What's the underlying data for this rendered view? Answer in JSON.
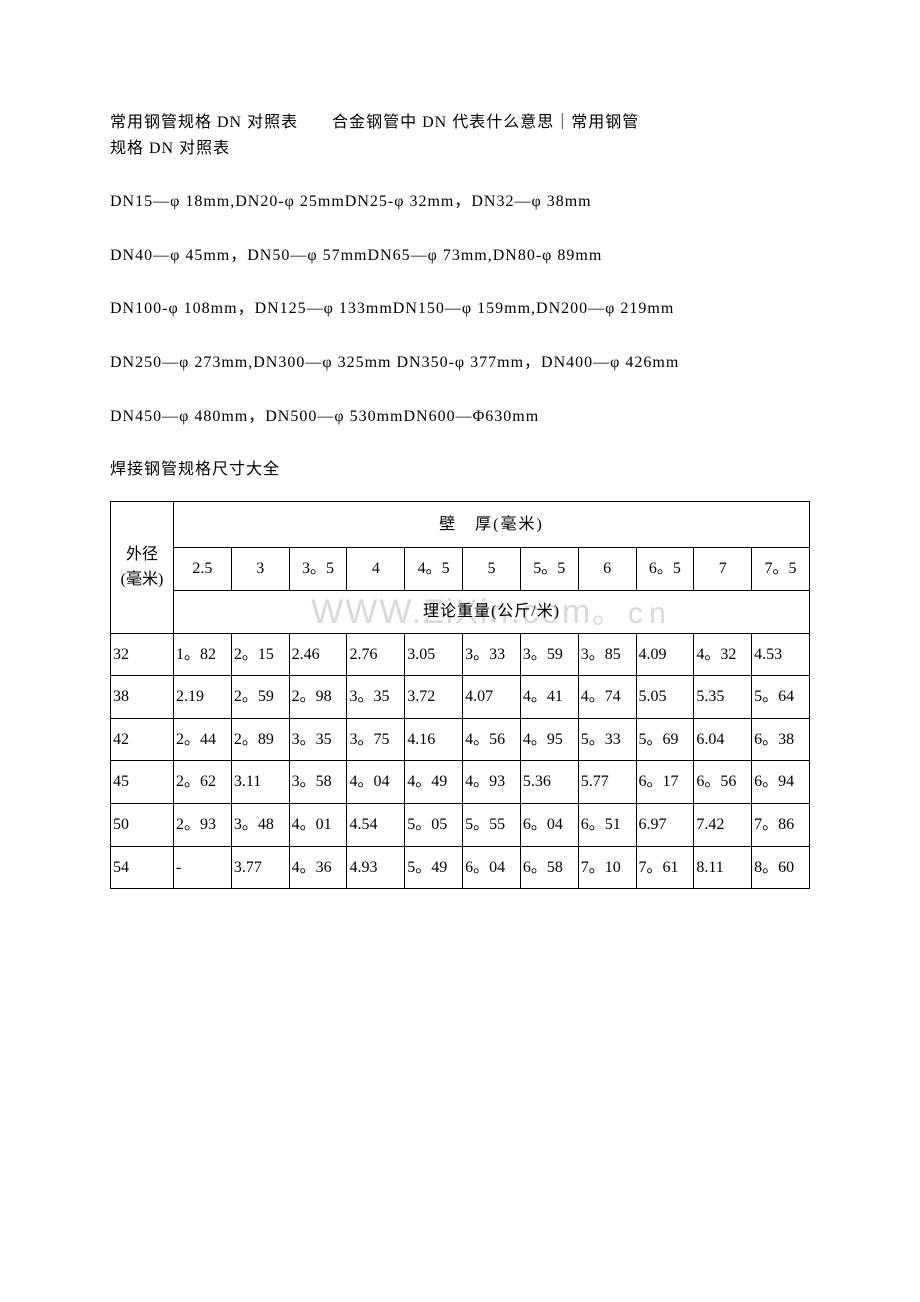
{
  "title_line1": "常用钢管规格 DN 对照表　　合金钢管中 DN 代表什么意思｜常用钢管",
  "title_line2": "规格 DN 对照表",
  "paragraphs": [
    "DN15—φ 18mm,DN20-φ 25mmDN25-φ 32mm，DN32—φ 38mm",
    "DN40—φ 45mm，DN50—φ 57mmDN65—φ 73mm,DN80-φ 89mm",
    "DN100-φ 108mm，DN125—φ 133mmDN150—φ 159mm,DN200—φ 219mm",
    "DN250—φ 273mm,DN300—φ 325mm DN350-φ 377mm，DN400—φ 426mm",
    "DN450—φ 480mm，DN500—φ 530mmDN600—Φ630mm"
  ],
  "sub_title": "焊接钢管规格尺寸大全",
  "table": {
    "outer_header": "外径\n(毫米)",
    "thickness_header": "壁　厚(毫米)",
    "weight_header": "理论重量(公斤/米)",
    "thickness_cols": [
      "2.5",
      "3",
      "3。5",
      "4",
      "4。5",
      "5",
      "5。5",
      "6",
      "6。5",
      "7",
      "7。5"
    ],
    "rows": [
      {
        "od": "32",
        "cells": [
          "1。82",
          "2。15",
          "2.46",
          "2.76",
          "3.05",
          "3。33",
          "3。59",
          "3。85",
          "4.09",
          "4。32",
          "4.53"
        ]
      },
      {
        "od": "38",
        "cells": [
          "2.19",
          "2。59",
          "2。98",
          "3。35",
          "3.72",
          "4.07",
          "4。41",
          "4。74",
          "5.05",
          "5.35",
          "5。64"
        ]
      },
      {
        "od": "42",
        "cells": [
          "2。44",
          "2。89",
          "3。35",
          "3。75",
          "4.16",
          "4。56",
          "4。95",
          "5。33",
          "5。69",
          "6.04",
          "6。38"
        ]
      },
      {
        "od": "45",
        "cells": [
          "2。62",
          "3.11",
          "3。58",
          "4。04",
          "4。49",
          "4。93",
          "5.36",
          "5.77",
          "6。17",
          "6。56",
          "6。94"
        ]
      },
      {
        "od": "50",
        "cells": [
          "2。93",
          "3。48",
          "4。01",
          "4.54",
          "5。05",
          "5。55",
          "6。04",
          "6。51",
          "6.97",
          "7.42",
          "7。86"
        ]
      },
      {
        "od": "54",
        "cells": [
          "-",
          "3.77",
          "4。36",
          "4.93",
          "5。49",
          "6。04",
          "6。58",
          "7。10",
          "7。61",
          "8.11",
          "8。60"
        ]
      }
    ]
  },
  "watermark": {
    "text_en": "WWW.ZiXin.",
    "text_cn": "。cn",
    "suffix": "com"
  }
}
